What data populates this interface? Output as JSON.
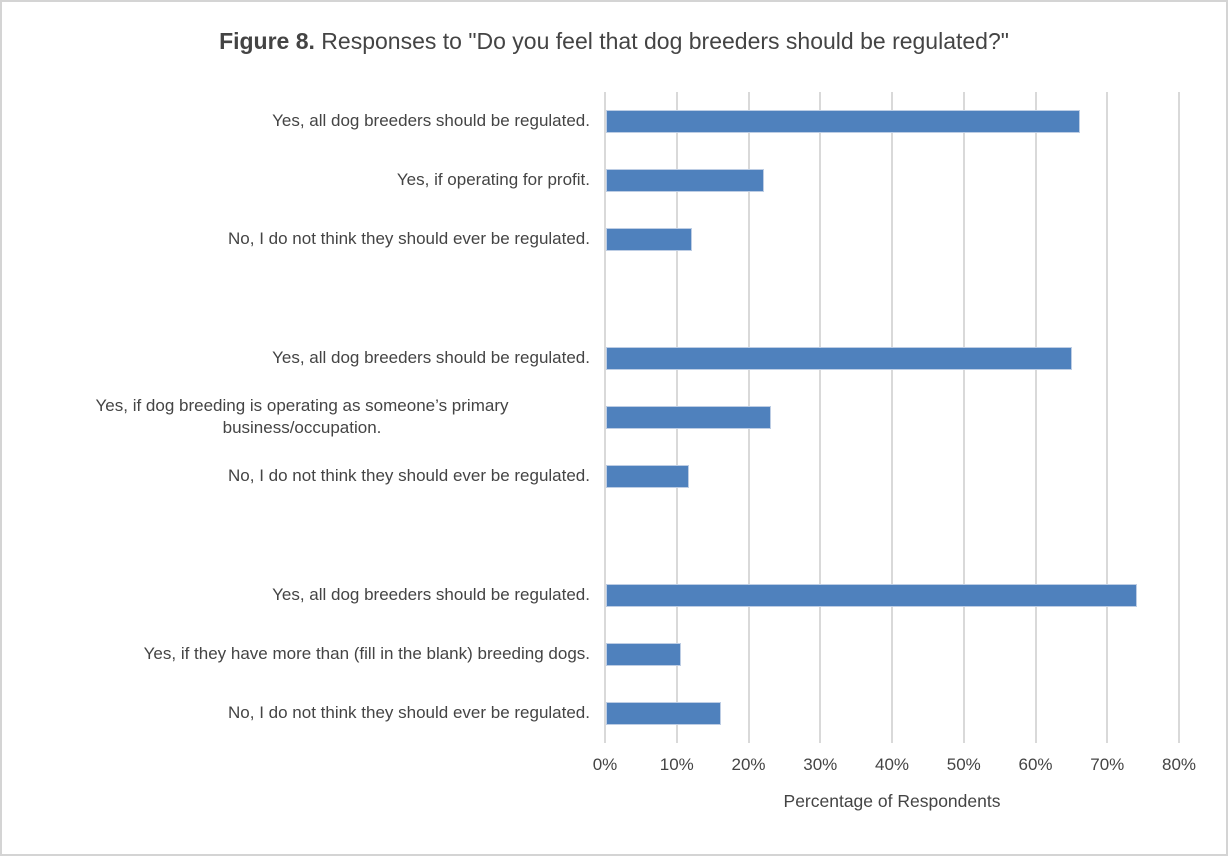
{
  "title": {
    "prefix": "Figure 8.",
    "text": " Responses to \"Do you feel that dog breeders should be regulated?\""
  },
  "chart_data": {
    "type": "bar",
    "orientation": "horizontal",
    "title": "Figure 8. Responses to \"Do you feel that dog breeders should be regulated?\"",
    "xlabel": "Percentage of Respondents",
    "ylabel": "",
    "xlim": [
      0,
      80
    ],
    "x_ticks": [
      "0%",
      "10%",
      "20%",
      "30%",
      "40%",
      "50%",
      "60%",
      "70%",
      "80%"
    ],
    "grid": "vertical",
    "legend": "none",
    "bar_color": "#4f81bd",
    "bar_border_color": "#bdcde4",
    "gridline_color": "#d9d9d9",
    "text_color": "#444444",
    "groups": [
      {
        "items": [
          {
            "label": "Yes, all dog breeders should be regulated.",
            "value": 66
          },
          {
            "label": "Yes, if operating for profit.",
            "value": 22
          },
          {
            "label": "No, I do not think they should ever be regulated.",
            "value": 12
          }
        ]
      },
      {
        "items": [
          {
            "label": "Yes, all dog breeders should be regulated.",
            "value": 65
          },
          {
            "label": "Yes, if dog breeding is operating as someone’s primary business/occupation.",
            "value": 23
          },
          {
            "label": "No, I do not think they should ever be regulated.",
            "value": 11.5
          }
        ]
      },
      {
        "items": [
          {
            "label": "Yes, all dog breeders should be regulated.",
            "value": 74
          },
          {
            "label": "Yes, if they have more than (fill in the blank) breeding dogs.",
            "value": 10.5
          },
          {
            "label": "No, I do not think they should ever be regulated.",
            "value": 16
          }
        ]
      }
    ]
  }
}
